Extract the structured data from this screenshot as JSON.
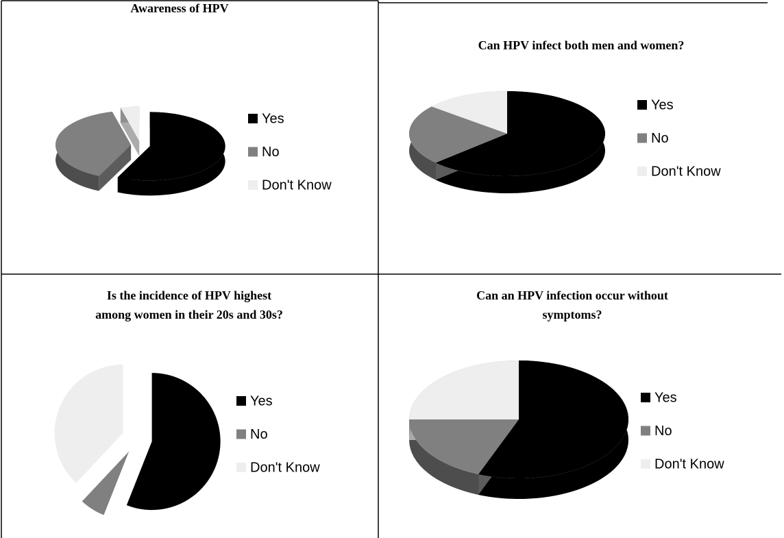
{
  "chart_data": [
    {
      "type": "pie",
      "title": [
        "Awareness of HPV"
      ],
      "categories": [
        "Yes",
        "No",
        "Don't Know"
      ],
      "values": [
        57,
        39,
        4
      ],
      "colors": [
        "#000000",
        "#808080",
        "#eeeeee"
      ],
      "three_d": true,
      "exploded": true
    },
    {
      "type": "pie",
      "title": [
        "Can HPV infect both men and women?"
      ],
      "categories": [
        "Yes",
        "No",
        "Don't Know"
      ],
      "values": [
        63,
        23,
        14
      ],
      "colors": [
        "#000000",
        "#808080",
        "#eeeeee"
      ],
      "three_d": true,
      "exploded": false
    },
    {
      "type": "pie",
      "title": [
        "Is the incidence of HPV highest",
        "among women in their 20s and 30s?"
      ],
      "categories": [
        "Yes",
        "No",
        "Don't Know"
      ],
      "values": [
        56,
        6,
        38
      ],
      "colors": [
        "#000000",
        "#808080",
        "#eeeeee"
      ],
      "three_d": false,
      "exploded": true
    },
    {
      "type": "pie",
      "title": [
        "Can an HPV infection occur without",
        "symptoms?"
      ],
      "categories": [
        "Yes",
        "No",
        "Don't Know"
      ],
      "values": [
        56,
        19,
        25
      ],
      "colors": [
        "#000000",
        "#808080",
        "#eeeeee"
      ],
      "three_d": true,
      "exploded": false
    }
  ]
}
